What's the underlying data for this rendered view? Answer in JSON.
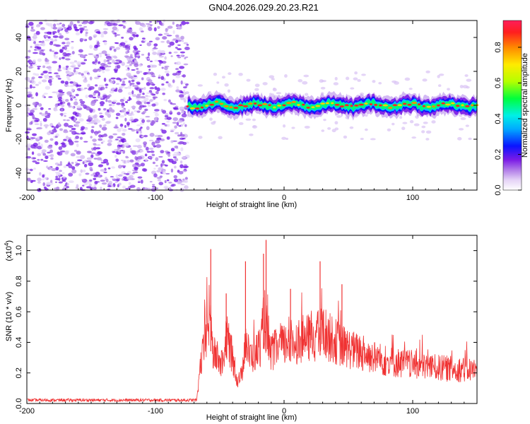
{
  "chart_data": [
    {
      "type": "heatmap",
      "title": "GN04.2026.029.20.23.R21",
      "xlabel": "Height of straight line (km)",
      "ylabel": "Frequency (Hz)",
      "xlim": [
        -200,
        150
      ],
      "ylim": [
        -50,
        50
      ],
      "xticks": [
        -200,
        -100,
        0,
        100
      ],
      "yticks": [
        -40,
        -20,
        0,
        20,
        40
      ],
      "noise_region_x": [
        -200,
        -75
      ],
      "ridge": {
        "x_start": -75,
        "x_end": 150,
        "center_freq_hz": 0,
        "wiggle_hz": 2,
        "peak_amplitude": 0.9
      },
      "colorbar": {
        "label": "Normalized spectral amplitude",
        "range": [
          0.0,
          0.95
        ],
        "ticks": [
          "0.0",
          "0.2",
          "0.4",
          "0.6",
          "0.8"
        ]
      }
    },
    {
      "type": "line",
      "xlabel": "Height of straight line (km)",
      "ylabel": "SNR (10 * v/v)",
      "scale_label": "(x10",
      "scale_exp": "4",
      "xlim": [
        -200,
        150
      ],
      "ylim": [
        0,
        1.1
      ],
      "xticks": [
        -200,
        -100,
        0,
        100
      ],
      "yticks": [
        "0.0",
        "0.2",
        "0.4",
        "0.6",
        "0.8",
        "1.0"
      ],
      "color": "#f03232",
      "envelope": [
        [
          -200,
          0.02
        ],
        [
          -80,
          0.02
        ],
        [
          -68,
          0.02
        ],
        [
          -65,
          0.35
        ],
        [
          -62,
          0.5
        ],
        [
          -58,
          0.8
        ],
        [
          -55,
          0.45
        ],
        [
          -48,
          0.35
        ],
        [
          -45,
          0.6
        ],
        [
          -40,
          0.42
        ],
        [
          -36,
          0.2
        ],
        [
          -33,
          0.25
        ],
        [
          -30,
          0.6
        ],
        [
          -27,
          0.42
        ],
        [
          -22,
          0.45
        ],
        [
          -18,
          0.55
        ],
        [
          -15,
          0.8
        ],
        [
          -12,
          0.45
        ],
        [
          -5,
          0.5
        ],
        [
          5,
          0.55
        ],
        [
          15,
          0.58
        ],
        [
          25,
          0.6
        ],
        [
          30,
          0.65
        ],
        [
          35,
          0.6
        ],
        [
          45,
          0.52
        ],
        [
          60,
          0.45
        ],
        [
          80,
          0.38
        ],
        [
          100,
          0.35
        ],
        [
          120,
          0.32
        ],
        [
          150,
          0.3
        ]
      ],
      "peaks": [
        [
          -57,
          1.01
        ],
        [
          -45,
          0.72
        ],
        [
          -30,
          0.93
        ],
        [
          -16,
          0.98
        ],
        [
          -14,
          1.07
        ],
        [
          28,
          0.93
        ],
        [
          5,
          0.75
        ],
        [
          45,
          0.78
        ]
      ]
    }
  ]
}
